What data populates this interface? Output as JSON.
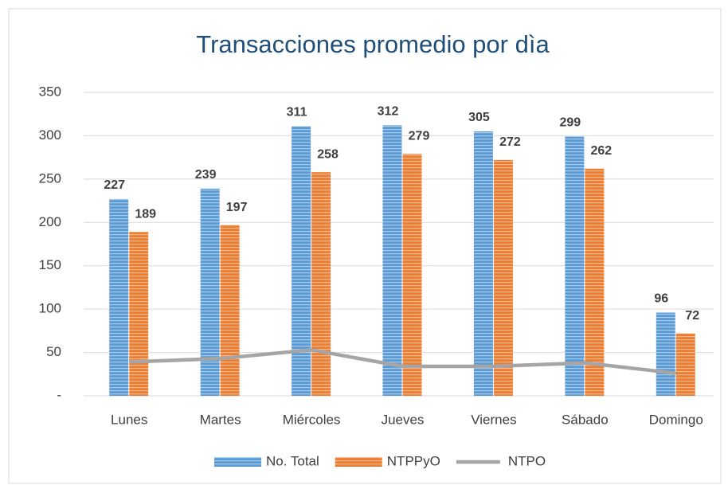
{
  "chart_data": {
    "type": "bar",
    "title": "Transacciones promedio por dìa",
    "categories": [
      "Lunes",
      "Martes",
      "Miércoles",
      "Jueves",
      "Viernes",
      "Sábado",
      "Domingo"
    ],
    "series": [
      {
        "name": "No. Total",
        "color": "#5b9bd5",
        "values": [
          227,
          239,
          311,
          312,
          305,
          299,
          96
        ]
      },
      {
        "name": "NTPPyO",
        "color": "#ed7d31",
        "values": [
          189,
          197,
          258,
          279,
          272,
          262,
          72
        ]
      },
      {
        "name": "NTPO",
        "color": "#a5a5a5",
        "type": "line",
        "values": [
          39,
          43,
          53,
          34,
          34,
          38,
          26
        ]
      }
    ],
    "ylim": [
      0,
      350
    ],
    "yticks": [
      {
        "value": 0,
        "label": "-"
      },
      50,
      100,
      150,
      200,
      250,
      300,
      350
    ],
    "grid": true,
    "legend": "bottom"
  }
}
